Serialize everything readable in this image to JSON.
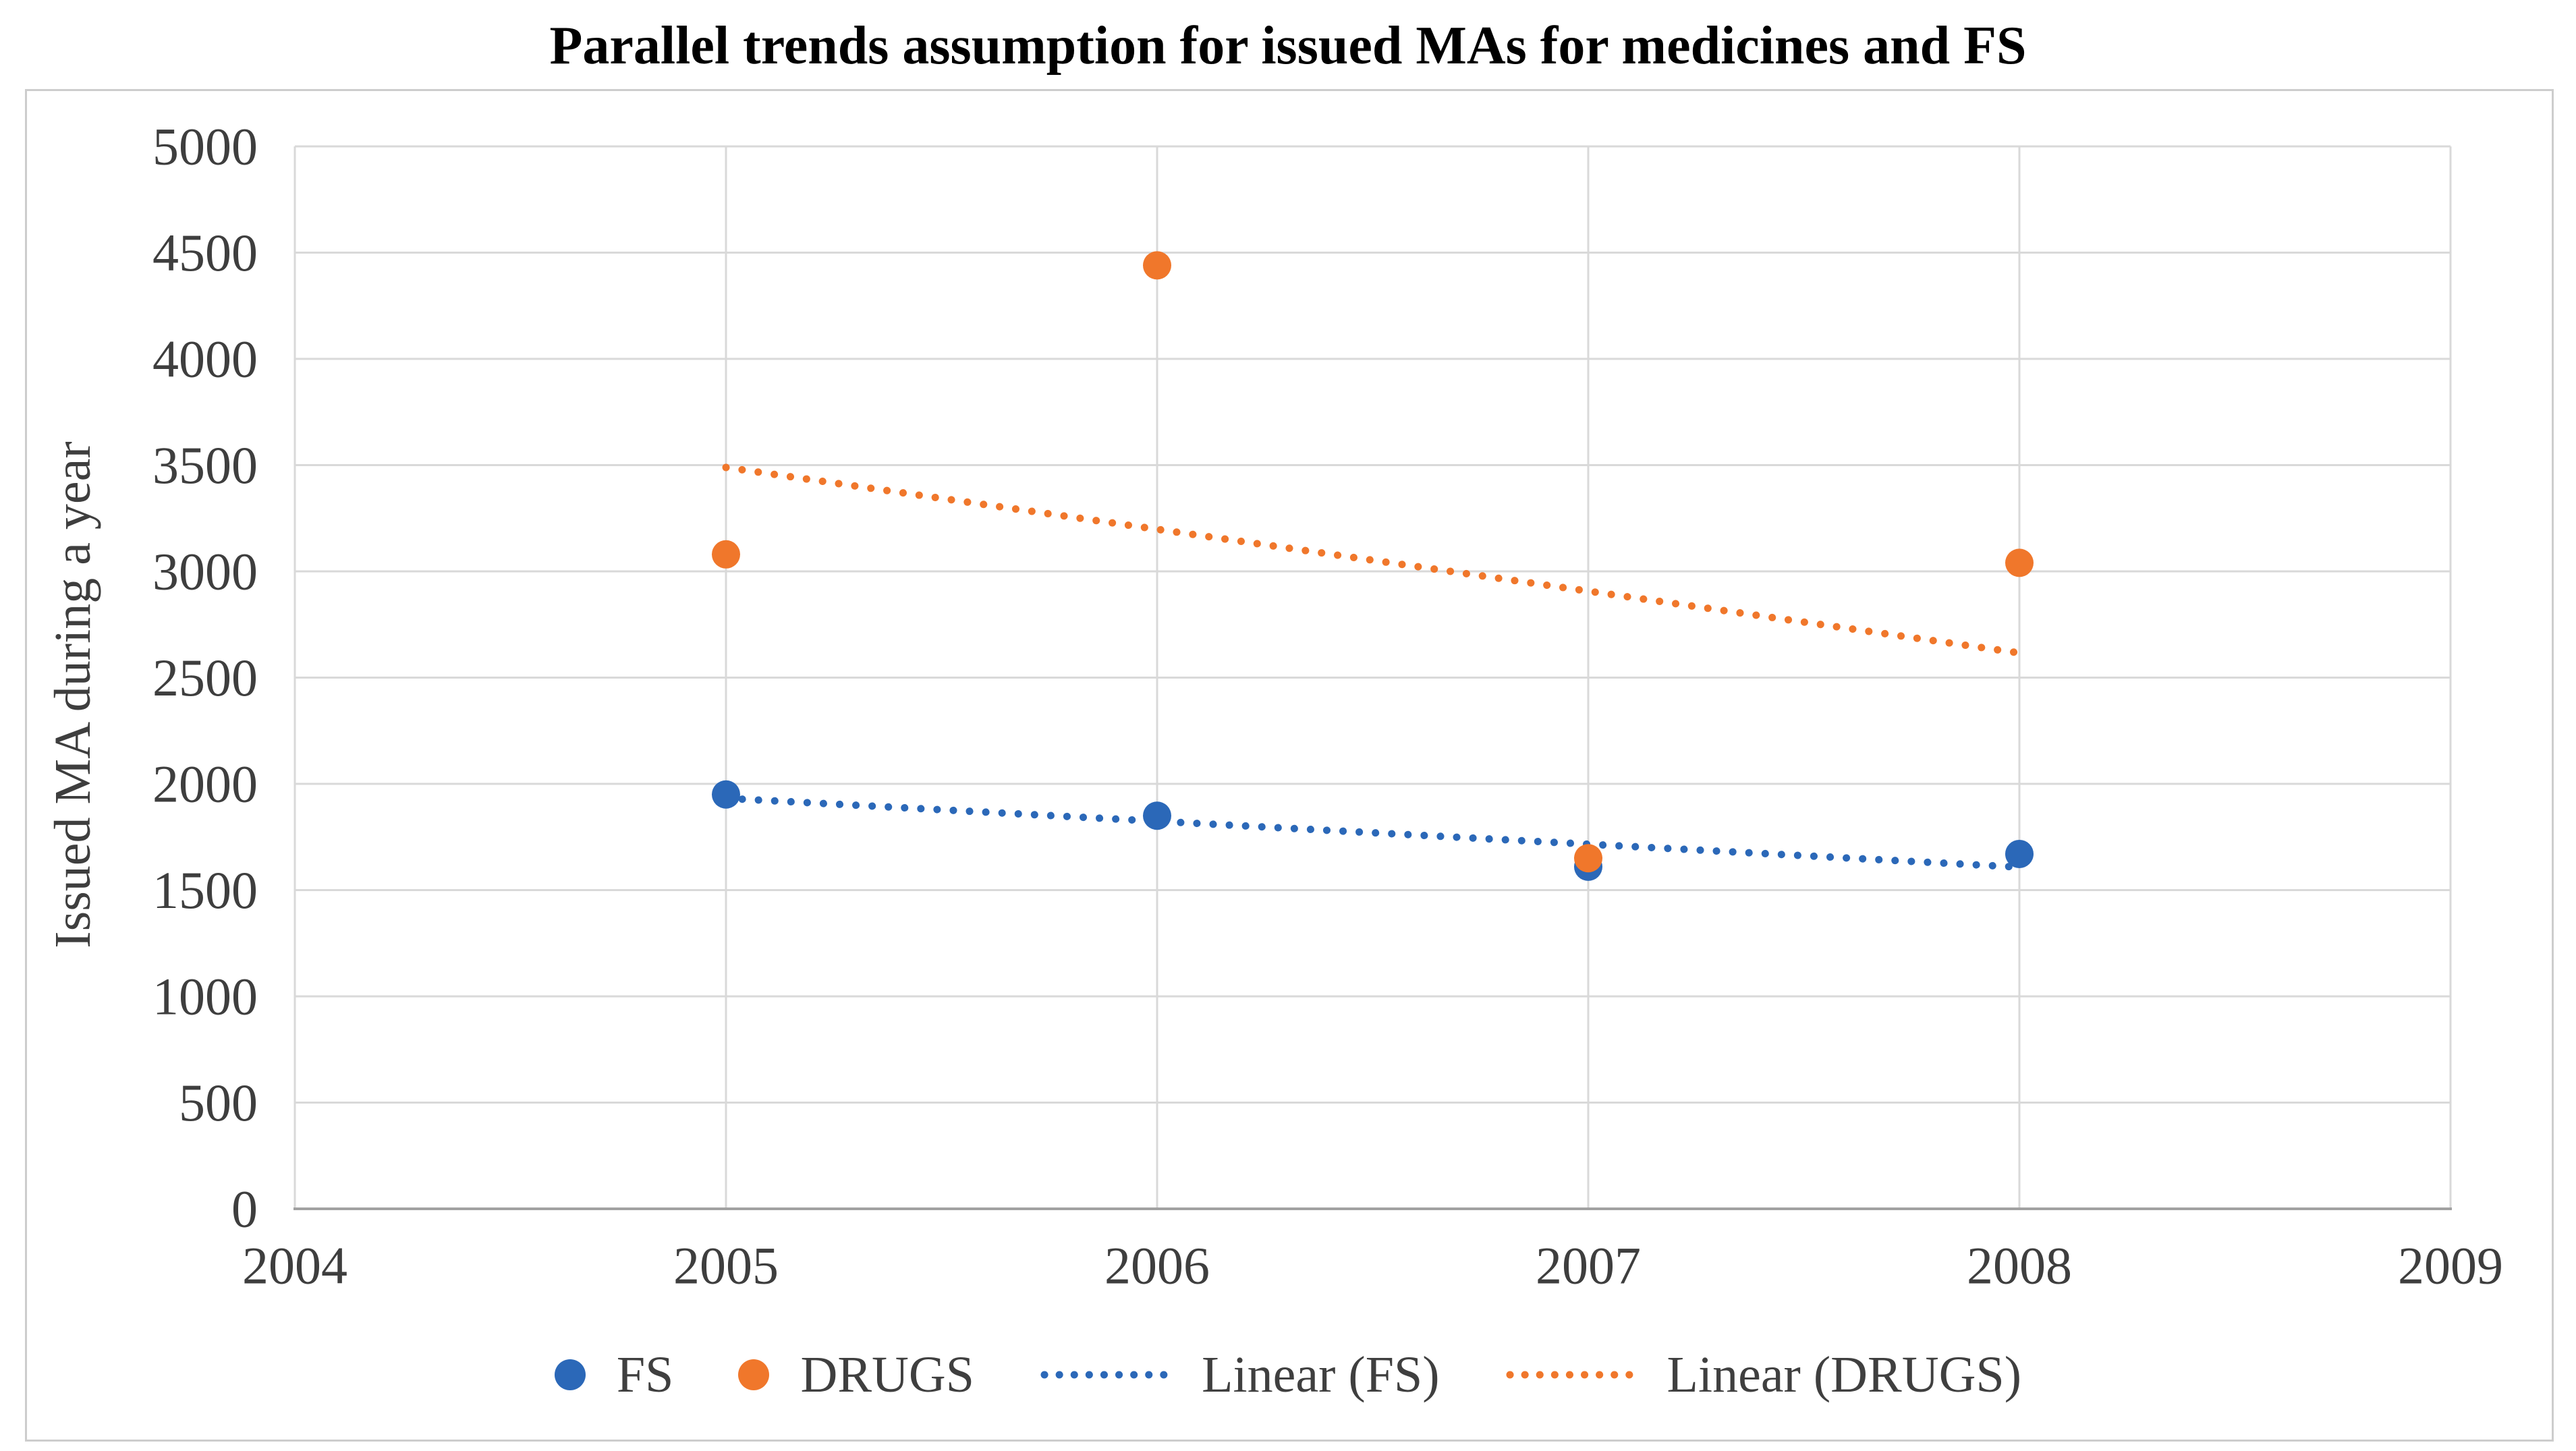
{
  "chart_data": {
    "type": "scatter",
    "title": "Parallel trends assumption for issued MAs for medicines and FS",
    "ylabel": "Issued MA during a year",
    "xlabel": "",
    "xlim": [
      2004,
      2009
    ],
    "ylim": [
      0,
      5000
    ],
    "x_ticks": [
      2004,
      2005,
      2006,
      2007,
      2008,
      2009
    ],
    "y_ticks": [
      0,
      500,
      1000,
      1500,
      2000,
      2500,
      3000,
      3500,
      4000,
      4500,
      5000
    ],
    "grid": true,
    "x": [
      2005,
      2006,
      2007,
      2008
    ],
    "series": [
      {
        "name": "FS",
        "color": "#2B68B8",
        "marker": "circle",
        "values": [
          1950,
          1850,
          1610,
          1670
        ]
      },
      {
        "name": "DRUGS",
        "color": "#F0772B",
        "marker": "circle",
        "values": [
          3080,
          4440,
          1650,
          3040
        ]
      }
    ],
    "trendlines": [
      {
        "name": "Linear (FS)",
        "color": "#2B68B8",
        "style": "dotted",
        "x": [
          2005,
          2008
        ],
        "y": [
          1932,
          1608
        ]
      },
      {
        "name": "Linear (DRUGS)",
        "color": "#F0772B",
        "style": "dotted",
        "x": [
          2005,
          2008
        ],
        "y": [
          3489,
          2616
        ]
      }
    ],
    "legend_position": "bottom",
    "legend": [
      {
        "label": "FS",
        "swatch": "dot",
        "color": "#2B68B8"
      },
      {
        "label": "DRUGS",
        "swatch": "dot",
        "color": "#F0772B"
      },
      {
        "label": "Linear (FS)",
        "swatch": "dotted-line",
        "color": "#2B68B8"
      },
      {
        "label": "Linear (DRUGS)",
        "swatch": "dotted-line",
        "color": "#F0772B"
      }
    ],
    "axis_colors": {
      "tick_label": "#3e3e3e",
      "axis_title": "#3e3e3e",
      "gridline": "#d9d9d9",
      "axis_line": "#a1a1a1",
      "border": "#cdcdcd"
    }
  }
}
